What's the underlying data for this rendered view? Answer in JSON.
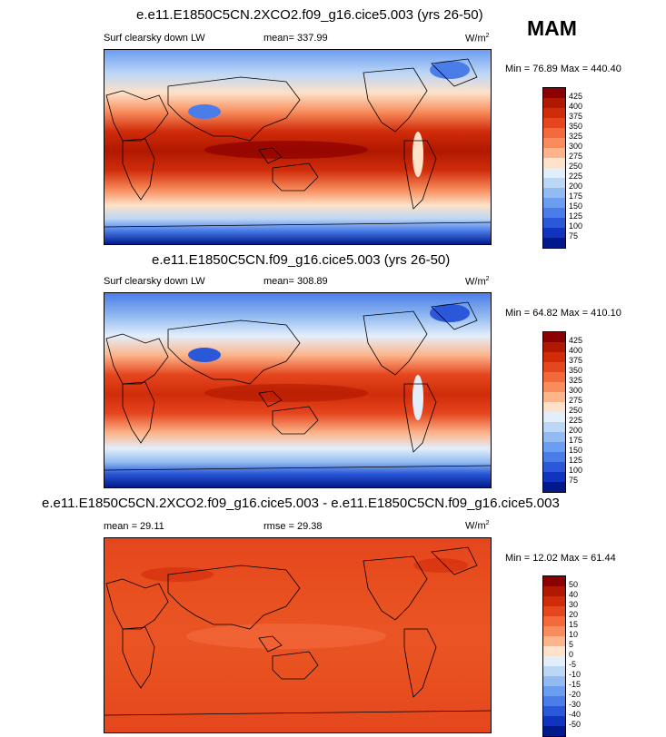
{
  "season": "MAM",
  "panels": [
    {
      "title": "e.e11.E1850C5CN.2XCO2.f09_g16.cice5.003 (yrs 26-50)",
      "left_label": "Surf clearsky down LW",
      "mid_label": "mean= 337.99",
      "units": "W/m",
      "units_sup": "2",
      "minmax": "Min =  76.89 Max = 440.40",
      "colorbar": {
        "labels": [
          "425",
          "400",
          "375",
          "350",
          "325",
          "300",
          "275",
          "250",
          "225",
          "200",
          "175",
          "150",
          "125",
          "100",
          "75"
        ],
        "colors": [
          "#8b0000",
          "#b01800",
          "#d02c0a",
          "#e5461e",
          "#f26a3c",
          "#f88c5c",
          "#fcb48a",
          "#fde1c8",
          "#e3eefb",
          "#bcd6f6",
          "#93bbf1",
          "#6b9ef0",
          "#4a7de8",
          "#2a58d8",
          "#1034c0",
          "#001a8c"
        ]
      }
    },
    {
      "title": "e.e11.E1850C5CN.f09_g16.cice5.003 (yrs 26-50)",
      "left_label": "Surf clearsky down LW",
      "mid_label": "mean= 308.89",
      "units": "W/m",
      "units_sup": "2",
      "minmax": "Min =  64.82 Max = 410.10",
      "colorbar": {
        "labels": [
          "425",
          "400",
          "375",
          "350",
          "325",
          "300",
          "275",
          "250",
          "225",
          "200",
          "175",
          "150",
          "125",
          "100",
          "75"
        ],
        "colors": [
          "#8b0000",
          "#b01800",
          "#d02c0a",
          "#e5461e",
          "#f26a3c",
          "#f88c5c",
          "#fcb48a",
          "#fde1c8",
          "#e3eefb",
          "#bcd6f6",
          "#93bbf1",
          "#6b9ef0",
          "#4a7de8",
          "#2a58d8",
          "#1034c0",
          "#001a8c"
        ]
      }
    },
    {
      "title": "e.e11.E1850C5CN.2XCO2.f09_g16.cice5.003 - e.e11.E1850C5CN.f09_g16.cice5.003",
      "left_label": "mean =  29.11",
      "mid_label": "rmse =  29.38",
      "units": "W/m",
      "units_sup": "2",
      "minmax": "Min =  12.02 Max =  61.44",
      "colorbar": {
        "labels": [
          "50",
          "40",
          "30",
          "20",
          "15",
          "10",
          "5",
          "0",
          "-5",
          "-10",
          "-15",
          "-20",
          "-30",
          "-40",
          "-50"
        ],
        "colors": [
          "#8b0000",
          "#b01800",
          "#d02c0a",
          "#e5461e",
          "#f26a3c",
          "#f88c5c",
          "#fcb48a",
          "#fde1c8",
          "#e3eefb",
          "#bcd6f6",
          "#93bbf1",
          "#6b9ef0",
          "#4a7de8",
          "#2a58d8",
          "#1034c0",
          "#001a8c"
        ]
      }
    }
  ]
}
